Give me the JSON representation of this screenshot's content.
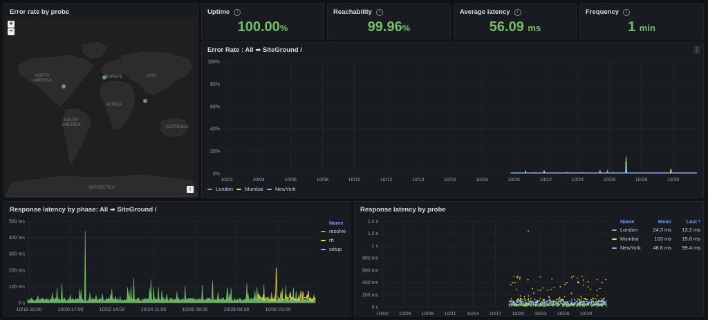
{
  "map_panel": {
    "title": "Error rate by probe",
    "zoom_in": "+",
    "zoom_out": "−",
    "info_btn": "i",
    "labels": {
      "north_america": "NORTH\nAMERICA",
      "europe": "EUROPE",
      "asia": "ASIA",
      "africa": "AFRICA",
      "south_america": "SOUTH\nAMERICA",
      "australia": "AUSTRALIA",
      "antarctica": "ANTARCTICA"
    }
  },
  "stats": [
    {
      "title": "Uptime",
      "value": "100.00",
      "unit": "%"
    },
    {
      "title": "Reachability",
      "value": "99.96",
      "unit": "%"
    },
    {
      "title": "Average latency",
      "value": "56.09",
      "unit": "ms"
    },
    {
      "title": "Frequency",
      "value": "1",
      "unit": "min"
    }
  ],
  "colors": {
    "london": "#73bf69",
    "mumbai": "#fade2a",
    "newyork": "#8ab8ff",
    "stat": "#73bf69",
    "name_header": "#6e9fff"
  },
  "error_rate": {
    "title": "Error Rate : All ➡ SiteGround /",
    "y_ticks": [
      "100%",
      "80%",
      "60%",
      "40%",
      "20%",
      "0%"
    ],
    "x_ticks": [
      "10/02",
      "10/04",
      "10/06",
      "10/08",
      "10/10",
      "10/12",
      "10/14",
      "10/16",
      "10/18",
      "10/20",
      "10/22",
      "10/24",
      "10/26",
      "10/28",
      "10/30"
    ],
    "legend": [
      "London",
      "Mumbai",
      "NewYork"
    ]
  },
  "phase": {
    "title": "Response latency by phase: All ➡ SiteGround /",
    "y_ticks": [
      "500 ms",
      "400 ms",
      "300 ms",
      "200 ms",
      "100 ms",
      "0 s"
    ],
    "x_ticks": [
      "10/18 20:00",
      "10/20 17:00",
      "10/22 14:00",
      "10/24 11:00",
      "10/26 08:00",
      "10/28 04:00",
      "10/30 01:00"
    ],
    "legend_header": "Name",
    "legend": [
      "resolve",
      "rtt",
      "setup"
    ]
  },
  "probe": {
    "title": "Response latency by probe",
    "y_ticks": [
      "1.4 s",
      "1.2 s",
      "1 s",
      "800 ms",
      "600 ms",
      "400 ms",
      "200 ms",
      "0 s"
    ],
    "x_ticks": [
      "10/02",
      "10/05",
      "10/08",
      "10/11",
      "10/14",
      "10/17",
      "10/20",
      "10/23",
      "10/26",
      "10/29"
    ],
    "headers": {
      "name": "Name",
      "mean": "Mean",
      "last": "Last *"
    },
    "rows": [
      {
        "name": "London",
        "mean": "24.3 ms",
        "last": "13.2 ms"
      },
      {
        "name": "Mumbai",
        "mean": "103 ms",
        "last": "15.6 ms"
      },
      {
        "name": "NewYork",
        "mean": "48.6 ms",
        "last": "99.4 ms"
      }
    ]
  }
}
